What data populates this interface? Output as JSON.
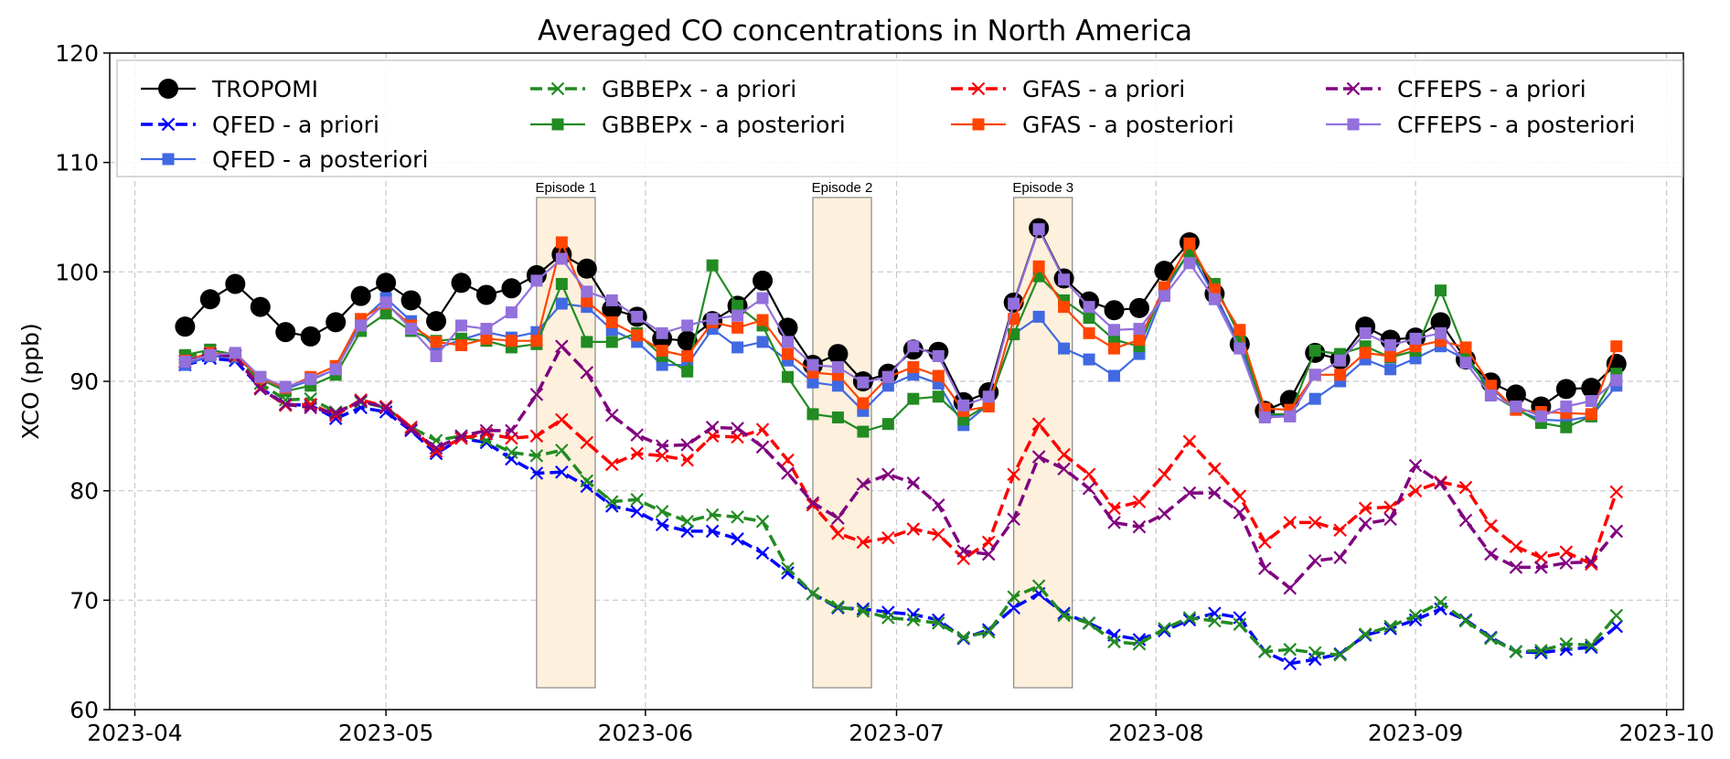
{
  "chart_data": {
    "type": "line",
    "title": "Averaged CO concentrations in North America",
    "xlabel": "",
    "ylabel": "XCO (ppb)",
    "ylim": [
      60,
      120
    ],
    "xlim": [
      "2023-03-29",
      "2023-10-03"
    ],
    "yticks": [
      60,
      70,
      80,
      90,
      100,
      110,
      120
    ],
    "xticks": [
      "2023-04",
      "2023-05",
      "2023-06",
      "2023-07",
      "2023-08",
      "2023-09",
      "2023-10"
    ],
    "xtick_dates": [
      "2023-04-01",
      "2023-05-01",
      "2023-06-01",
      "2023-07-01",
      "2023-08-01",
      "2023-09-01",
      "2023-10-01"
    ],
    "grid": true,
    "legend_placement": "top (4 columns, inside axes)",
    "x_start": "2023-04-07",
    "x_step_days": 3,
    "episodes": [
      {
        "label": "Episode 1",
        "start": "2023-05-19",
        "end": "2023-05-26",
        "color": "#fdf0dc"
      },
      {
        "label": "Episode 2",
        "start": "2023-06-21",
        "end": "2023-06-28",
        "color": "#fdf0dc"
      },
      {
        "label": "Episode 3",
        "start": "2023-07-15",
        "end": "2023-07-22",
        "color": "#fdf0dc"
      }
    ],
    "series": [
      {
        "name": "TROPOMI",
        "color": "#000000",
        "style": "solid",
        "marker": "circle",
        "values": [
          95.0,
          97.5,
          98.9,
          96.8,
          94.5,
          94.1,
          95.4,
          97.8,
          99.0,
          97.4,
          95.5,
          99.0,
          97.9,
          98.5,
          99.7,
          101.6,
          100.3,
          96.6,
          95.9,
          93.9,
          93.7,
          95.5,
          96.9,
          99.2,
          94.9,
          91.5,
          92.5,
          90.0,
          90.7,
          92.9,
          92.7,
          88.1,
          89.0,
          97.2,
          104.0,
          99.4,
          97.3,
          96.5,
          96.7,
          100.1,
          102.7,
          98.0,
          93.4,
          87.3,
          88.3,
          92.6,
          92.0,
          95.0,
          93.8,
          94.0,
          95.4,
          92.0,
          89.9,
          88.8,
          87.7,
          89.3,
          89.4,
          91.6
        ]
      },
      {
        "name": "QFED - a priori",
        "color": "#0000ff",
        "style": "dashed",
        "marker": "x",
        "values": [
          91.5,
          92.1,
          91.9,
          89.4,
          87.9,
          87.8,
          86.6,
          87.6,
          87.2,
          85.5,
          83.4,
          84.8,
          84.4,
          82.9,
          81.6,
          81.7,
          80.4,
          78.6,
          78.1,
          76.9,
          76.3,
          76.3,
          75.6,
          74.3,
          72.5,
          70.6,
          69.3,
          69.2,
          68.9,
          68.7,
          68.2,
          66.5,
          67.3,
          69.3,
          70.6,
          68.8,
          67.9,
          66.8,
          66.4,
          67.2,
          68.2,
          68.8,
          68.4,
          65.3,
          64.2,
          64.6,
          65.1,
          66.8,
          67.4,
          68.2,
          69.2,
          68.2,
          66.6,
          65.3,
          65.2,
          65.5,
          65.7,
          67.6
        ]
      },
      {
        "name": "QFED - a posteriori",
        "color": "#4169e1",
        "style": "solid",
        "marker": "square",
        "values": [
          91.5,
          92.3,
          92.2,
          90.4,
          89.3,
          90.1,
          91.1,
          95.5,
          97.6,
          95.5,
          93.0,
          93.8,
          94.5,
          94.0,
          94.5,
          97.1,
          96.8,
          94.7,
          93.6,
          91.5,
          91.5,
          94.8,
          93.1,
          93.6,
          91.9,
          89.9,
          89.6,
          87.3,
          89.6,
          90.6,
          89.8,
          86.0,
          87.9,
          94.3,
          95.9,
          93.0,
          92.0,
          90.5,
          92.5,
          98.2,
          101.9,
          97.8,
          93.6,
          86.9,
          86.8,
          88.4,
          90.0,
          92.0,
          91.1,
          92.1,
          93.2,
          92.0,
          89.4,
          87.4,
          86.5,
          86.4,
          86.8,
          89.6
        ]
      },
      {
        "name": "GBBEPx - a priori",
        "color": "#228b22",
        "style": "dashed",
        "marker": "x",
        "values": [
          92.2,
          92.8,
          92.4,
          89.8,
          88.3,
          88.4,
          87.2,
          88.1,
          87.6,
          85.8,
          84.6,
          85.0,
          84.6,
          83.5,
          83.2,
          83.7,
          80.9,
          79.0,
          79.2,
          78.1,
          77.2,
          77.8,
          77.6,
          77.2,
          72.9,
          70.6,
          69.4,
          69.0,
          68.4,
          68.2,
          67.9,
          66.6,
          67.1,
          70.3,
          71.3,
          68.6,
          67.9,
          66.2,
          66.0,
          67.4,
          68.4,
          68.1,
          67.8,
          65.3,
          65.5,
          65.2,
          65.0,
          66.9,
          67.6,
          68.6,
          69.8,
          68.1,
          66.5,
          65.3,
          65.4,
          66.0,
          65.9,
          68.6
        ]
      },
      {
        "name": "GBBEPx - a posteriori",
        "color": "#228b22",
        "style": "solid",
        "marker": "square",
        "values": [
          92.4,
          92.9,
          92.4,
          90.2,
          89.1,
          89.6,
          90.6,
          94.6,
          96.2,
          94.6,
          93.7,
          93.9,
          93.7,
          93.1,
          93.4,
          98.9,
          93.6,
          93.6,
          94.4,
          92.3,
          90.9,
          100.6,
          96.9,
          95.1,
          90.4,
          87.0,
          86.7,
          85.4,
          86.1,
          88.4,
          88.6,
          86.5,
          87.9,
          94.3,
          99.6,
          97.4,
          95.8,
          93.8,
          93.2,
          98.6,
          101.8,
          98.9,
          94.1,
          87.0,
          87.0,
          92.8,
          92.5,
          93.2,
          92.2,
          92.8,
          98.3,
          92.6,
          88.8,
          87.5,
          86.2,
          85.8,
          86.8,
          90.7
        ]
      },
      {
        "name": "GFAS - a priori",
        "color": "#ff0000",
        "style": "dashed",
        "marker": "x",
        "values": [
          91.8,
          92.5,
          92.3,
          89.4,
          87.8,
          87.9,
          86.9,
          88.3,
          87.7,
          85.8,
          83.6,
          84.8,
          85.2,
          84.8,
          85.0,
          86.5,
          84.4,
          82.4,
          83.4,
          83.2,
          82.8,
          85.0,
          84.9,
          85.6,
          82.8,
          78.7,
          76.1,
          75.3,
          75.7,
          76.5,
          76.0,
          73.8,
          75.3,
          81.5,
          86.1,
          83.3,
          81.5,
          78.4,
          79.0,
          81.5,
          84.5,
          82.0,
          79.5,
          75.3,
          77.1,
          77.1,
          76.4,
          78.4,
          78.5,
          80.0,
          80.8,
          80.3,
          76.8,
          74.9,
          73.9,
          74.4,
          73.3,
          79.9
        ]
      },
      {
        "name": "GFAS - a posteriori",
        "color": "#ff4500",
        "style": "solid",
        "marker": "square",
        "values": [
          91.9,
          92.6,
          92.4,
          90.3,
          89.4,
          90.4,
          91.4,
          95.7,
          97.1,
          95.1,
          93.6,
          93.3,
          93.9,
          93.7,
          93.7,
          102.7,
          97.3,
          95.4,
          94.2,
          92.8,
          92.3,
          95.4,
          94.9,
          95.6,
          92.5,
          90.8,
          90.6,
          88.0,
          90.4,
          91.3,
          90.5,
          87.3,
          87.7,
          95.7,
          100.5,
          96.8,
          94.4,
          93.0,
          93.8,
          98.6,
          102.6,
          98.4,
          94.7,
          87.5,
          87.4,
          90.6,
          90.6,
          92.6,
          92.3,
          93.2,
          93.7,
          93.1,
          89.6,
          87.4,
          87.2,
          87.1,
          87.0,
          93.2
        ]
      },
      {
        "name": "CFFEPS - a priori",
        "color": "#800080",
        "style": "dashed",
        "marker": "x",
        "values": [
          91.8,
          92.5,
          92.3,
          89.3,
          87.9,
          87.6,
          87.1,
          88.2,
          87.6,
          85.6,
          83.9,
          85.0,
          85.5,
          85.5,
          88.8,
          93.2,
          90.8,
          86.9,
          85.1,
          84.1,
          84.2,
          85.8,
          85.7,
          84.0,
          81.6,
          78.9,
          77.5,
          80.6,
          81.5,
          80.7,
          78.7,
          74.5,
          74.2,
          77.4,
          83.1,
          82.0,
          80.2,
          77.1,
          76.7,
          77.9,
          79.8,
          79.8,
          78.0,
          72.9,
          71.1,
          73.6,
          73.9,
          77.0,
          77.4,
          82.3,
          80.7,
          77.3,
          74.2,
          73.0,
          73.0,
          73.4,
          73.5,
          76.3
        ]
      },
      {
        "name": "CFFEPS - a posteriori",
        "color": "#9370db",
        "style": "solid",
        "marker": "square",
        "values": [
          91.8,
          92.4,
          92.6,
          90.4,
          89.5,
          90.2,
          91.1,
          95.1,
          97.2,
          94.8,
          92.3,
          95.1,
          94.8,
          96.3,
          99.2,
          101.2,
          98.2,
          97.4,
          95.9,
          94.4,
          95.1,
          95.7,
          96.0,
          97.6,
          93.6,
          91.5,
          91.3,
          89.9,
          90.4,
          93.2,
          92.3,
          87.8,
          88.6,
          97.1,
          103.9,
          99.3,
          96.8,
          94.7,
          94.8,
          97.8,
          100.8,
          97.5,
          93.0,
          86.7,
          86.8,
          90.6,
          91.9,
          94.4,
          93.3,
          93.9,
          94.4,
          91.7,
          88.7,
          87.7,
          86.8,
          87.7,
          88.2,
          90.1
        ]
      }
    ]
  }
}
